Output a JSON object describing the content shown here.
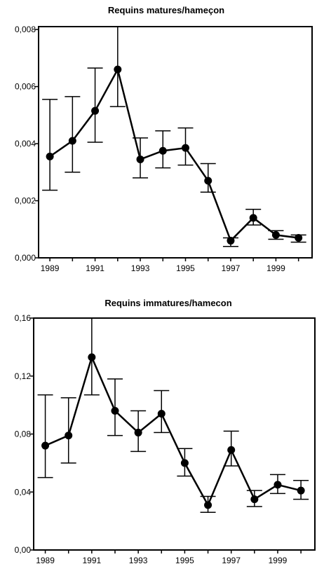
{
  "chart_data": [
    {
      "type": "line",
      "title": "Requins matures/hameçon",
      "xlabel": "",
      "ylabel": "",
      "x": [
        1989,
        1990,
        1991,
        1992,
        1993,
        1994,
        1995,
        1996,
        1997,
        1998,
        1999,
        2000
      ],
      "xlim": [
        1988.5,
        2000.6
      ],
      "x_tick_values": [
        1989,
        1991,
        1993,
        1995,
        1997,
        1999
      ],
      "x_tick_labels": [
        "1989",
        "1991",
        "1993",
        "1995",
        "1997",
        "1999"
      ],
      "ylim": [
        0,
        0.0081
      ],
      "y_tick_values": [
        0,
        0.002,
        0.004,
        0.006,
        0.008
      ],
      "y_tick_labels": [
        "0,000",
        "0,002",
        "0,004",
        "0,006",
        "0,008"
      ],
      "series": [
        {
          "values": [
            0.00355,
            0.0041,
            0.00515,
            0.0066,
            0.00345,
            0.00375,
            0.00385,
            0.0027,
            0.0006,
            0.0014,
            0.0008,
            0.0007
          ],
          "err_low": [
            0.00237,
            0.003,
            0.00405,
            0.0053,
            0.0028,
            0.00315,
            0.00325,
            0.0023,
            0.0004,
            0.00115,
            0.00065,
            0.00055
          ],
          "err_high": [
            0.00555,
            0.00565,
            0.00665,
            0.0081,
            0.0042,
            0.00445,
            0.00455,
            0.0033,
            0.0007,
            0.0017,
            0.00095,
            0.0008
          ]
        }
      ],
      "grid": false,
      "legend": "none",
      "line_color": "#000000",
      "marker_color": "#000000"
    },
    {
      "type": "line",
      "title": "Requins immatures/hamecon",
      "xlabel": "",
      "ylabel": "",
      "x": [
        1989,
        1990,
        1991,
        1992,
        1993,
        1994,
        1995,
        1996,
        1997,
        1998,
        1999,
        2000
      ],
      "xlim": [
        1988.5,
        2000.6
      ],
      "x_tick_values": [
        1989,
        1991,
        1993,
        1995,
        1997,
        1999
      ],
      "x_tick_labels": [
        "1989",
        "1991",
        "1993",
        "1995",
        "1997",
        "1999"
      ],
      "ylim": [
        0,
        0.16
      ],
      "y_tick_values": [
        0,
        0.04,
        0.08,
        0.12,
        0.16
      ],
      "y_tick_labels": [
        "0,00",
        "0,04",
        "0,08",
        "0,12",
        "0,16"
      ],
      "series": [
        {
          "values": [
            0.072,
            0.079,
            0.133,
            0.096,
            0.081,
            0.094,
            0.06,
            0.031,
            0.069,
            0.035,
            0.045,
            0.041
          ],
          "err_low": [
            0.05,
            0.06,
            0.107,
            0.079,
            0.068,
            0.081,
            0.051,
            0.026,
            0.058,
            0.03,
            0.039,
            0.035
          ],
          "err_high": [
            0.107,
            0.105,
            0.16,
            0.118,
            0.096,
            0.11,
            0.07,
            0.037,
            0.082,
            0.041,
            0.052,
            0.048
          ]
        }
      ],
      "grid": false,
      "legend": "none",
      "line_color": "#000000",
      "marker_color": "#000000"
    }
  ]
}
